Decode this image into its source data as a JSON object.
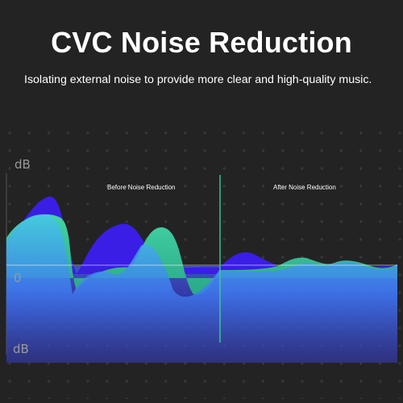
{
  "title": "CVC Noise Reduction",
  "subtitle": "Isolating external noise to provide more clear and high-quality music.",
  "axis": {
    "top_label": "dB",
    "zero_label": "0",
    "bottom_label": "dB"
  },
  "regions": {
    "before_label": "Before Noise Reduction",
    "after_label": "After Noise Reduction"
  },
  "colors": {
    "background": "#232323",
    "purple_wave": "#3a1ee6",
    "teal_wave": "#3ec9a0",
    "blue_fill": "#3d6ff0",
    "divider": "#3ec9a0"
  }
}
